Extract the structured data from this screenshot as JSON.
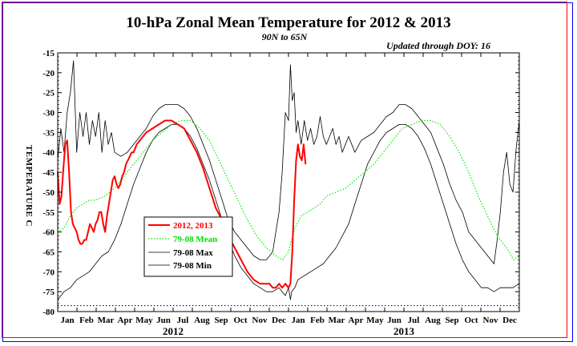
{
  "page": {
    "title": "10-hPa Zonal Mean Temperature for 2012 & 2013",
    "subtitle": "90N to 65N",
    "updated": "Updated through DOY:  16"
  },
  "colors": {
    "current": "#ff0000",
    "mean": "#00ee00",
    "max": "#000000",
    "min": "#000000",
    "reference": "#0000ff",
    "frame_outer": "#0000ff",
    "frame_inner": "#ff0000"
  },
  "chart_data": {
    "type": "line",
    "title": "10-hPa Zonal Mean Temperature for 2012 & 2013",
    "subtitle": "90N to 65N",
    "ylabel": "TEMPERATURE C",
    "xlabel": "",
    "ylim": [
      -80,
      -15
    ],
    "yticks": [
      -80,
      -75,
      -70,
      -65,
      -60,
      -55,
      -50,
      -45,
      -40,
      -35,
      -30,
      -25,
      -20,
      -15
    ],
    "xlim": [
      0,
      730
    ],
    "x_unit": "day of period starting 1 Jan 2012",
    "xtick_labels": [
      "Jan",
      "Feb",
      "Mar",
      "Apr",
      "May",
      "Jun",
      "Jul",
      "Aug",
      "Sep",
      "Oct",
      "Nov",
      "Dec",
      "Jan",
      "Feb",
      "Mar",
      "Apr",
      "May",
      "Jun",
      "Jul",
      "Aug",
      "Sep",
      "Oct",
      "Nov",
      "Dec"
    ],
    "year_labels": [
      "2012",
      "2013"
    ],
    "grid": false,
    "legend_position": "lower-left",
    "reference_line": {
      "y": -78.5,
      "style": "dotted"
    },
    "series": [
      {
        "name": "2012, 2013",
        "style": "solid-thick",
        "color": "#ff0000",
        "x": [
          0,
          3,
          6,
          9,
          12,
          15,
          18,
          21,
          24,
          27,
          30,
          33,
          36,
          39,
          42,
          45,
          48,
          51,
          54,
          57,
          60,
          63,
          66,
          69,
          72,
          75,
          78,
          81,
          84,
          87,
          90,
          93,
          96,
          99,
          102,
          105,
          108,
          111,
          114,
          117,
          120,
          125,
          130,
          140,
          150,
          160,
          170,
          180,
          190,
          200,
          210,
          220,
          230,
          240,
          250,
          260,
          270,
          280,
          290,
          300,
          310,
          320,
          330,
          335,
          340,
          345,
          350,
          355,
          360,
          365,
          368,
          371,
          374,
          377,
          380,
          383,
          386,
          389,
          392
        ],
        "y": [
          -45,
          -53,
          -51,
          -44,
          -38,
          -37,
          -45,
          -55,
          -58,
          -59,
          -60,
          -62,
          -63,
          -63,
          -62,
          -62,
          -60,
          -58,
          -59,
          -60,
          -58,
          -57,
          -55,
          -55,
          -58,
          -60,
          -56,
          -53,
          -50,
          -47,
          -46,
          -48,
          -49,
          -48,
          -46,
          -45,
          -43,
          -42,
          -41,
          -40,
          -40,
          -38,
          -37,
          -35,
          -34,
          -33,
          -32,
          -32,
          -33,
          -34,
          -37,
          -40,
          -44,
          -49,
          -54,
          -57,
          -61,
          -64,
          -67,
          -70,
          -72,
          -73,
          -73,
          -73,
          -74,
          -74,
          -73,
          -74,
          -73,
          -74,
          -73,
          -65,
          -52,
          -42,
          -38,
          -41,
          -42,
          -38,
          -43
        ]
      },
      {
        "name": "79-08 Mean",
        "style": "dotted",
        "color": "#00ee00",
        "x": [
          0,
          10,
          20,
          30,
          40,
          50,
          60,
          75,
          90,
          105,
          120,
          135,
          150,
          165,
          180,
          195,
          210,
          225,
          240,
          255,
          270,
          285,
          300,
          315,
          330,
          345,
          356,
          365,
          375,
          385,
          395,
          405,
          415,
          425,
          440,
          455,
          470,
          485,
          500,
          515,
          530,
          545,
          560,
          575,
          590,
          605,
          620,
          635,
          650,
          665,
          680,
          695,
          710,
          721,
          730
        ],
        "y": [
          -60,
          -59,
          -56,
          -54,
          -53,
          -52,
          -52,
          -51,
          -49,
          -46,
          -43,
          -40,
          -37,
          -35,
          -33,
          -32,
          -32,
          -34,
          -37,
          -42,
          -47,
          -52,
          -57,
          -61,
          -64,
          -66,
          -67,
          -65,
          -59,
          -56,
          -55,
          -54,
          -53,
          -51,
          -50,
          -49,
          -47,
          -45,
          -43,
          -40,
          -37,
          -34,
          -33,
          -32,
          -32,
          -33,
          -36,
          -40,
          -45,
          -51,
          -56,
          -61,
          -64,
          -67,
          -66
        ]
      },
      {
        "name": "79-08 Max",
        "style": "thin",
        "color": "#000000",
        "x": [
          0,
          5,
          10,
          15,
          20,
          25,
          30,
          35,
          40,
          45,
          50,
          55,
          60,
          65,
          70,
          75,
          80,
          85,
          90,
          100,
          110,
          120,
          130,
          140,
          150,
          160,
          170,
          180,
          190,
          200,
          210,
          220,
          230,
          240,
          250,
          260,
          270,
          280,
          290,
          300,
          310,
          320,
          330,
          340,
          345,
          350,
          355,
          360,
          365,
          368,
          371,
          374,
          377,
          380,
          385,
          390,
          395,
          400,
          405,
          410,
          415,
          420,
          425,
          430,
          435,
          440,
          445,
          450,
          455,
          460,
          465,
          470,
          480,
          490,
          500,
          510,
          520,
          530,
          540,
          550,
          560,
          570,
          580,
          590,
          600,
          610,
          620,
          630,
          640,
          650,
          660,
          670,
          680,
          690,
          695,
          700,
          705,
          710,
          715,
          720,
          725,
          730
        ],
        "y": [
          -42,
          -34,
          -40,
          -30,
          -25,
          -17,
          -40,
          -30,
          -36,
          -30,
          -38,
          -32,
          -36,
          -30,
          -40,
          -32,
          -38,
          -35,
          -40,
          -41,
          -40,
          -38,
          -36,
          -34,
          -31,
          -29,
          -28,
          -28,
          -28,
          -29,
          -31,
          -34,
          -38,
          -42,
          -47,
          -52,
          -57,
          -60,
          -62,
          -64,
          -66,
          -67,
          -67,
          -65,
          -60,
          -55,
          -45,
          -30,
          -32,
          -18,
          -27,
          -25,
          -35,
          -32,
          -38,
          -32,
          -37,
          -34,
          -38,
          -36,
          -31,
          -36,
          -38,
          -36,
          -34,
          -38,
          -36,
          -40,
          -38,
          -36,
          -38,
          -40,
          -37,
          -36,
          -35,
          -33,
          -31,
          -30,
          -28,
          -28,
          -29,
          -31,
          -33,
          -35,
          -39,
          -43,
          -48,
          -52,
          -55,
          -60,
          -62,
          -64,
          -66,
          -68,
          -62,
          -55,
          -45,
          -40,
          -48,
          -50,
          -39,
          -32
        ]
      },
      {
        "name": "79-08 Min",
        "style": "thin",
        "color": "#000000",
        "x": [
          0,
          10,
          20,
          30,
          40,
          50,
          60,
          70,
          80,
          90,
          100,
          110,
          120,
          130,
          140,
          150,
          160,
          170,
          180,
          190,
          200,
          210,
          220,
          230,
          240,
          250,
          260,
          270,
          280,
          290,
          300,
          310,
          320,
          330,
          340,
          350,
          355,
          360,
          365,
          368,
          370,
          375,
          380,
          390,
          400,
          410,
          420,
          430,
          440,
          450,
          460,
          470,
          480,
          490,
          500,
          510,
          520,
          530,
          540,
          550,
          560,
          570,
          580,
          590,
          600,
          610,
          620,
          630,
          640,
          650,
          660,
          670,
          680,
          690,
          700,
          710,
          720,
          730
        ],
        "y": [
          -77,
          -75,
          -74,
          -72,
          -71,
          -70,
          -68,
          -66,
          -65,
          -62,
          -58,
          -53,
          -48,
          -44,
          -40,
          -37,
          -35,
          -34,
          -33,
          -33,
          -34,
          -36,
          -39,
          -43,
          -47,
          -52,
          -57,
          -62,
          -66,
          -69,
          -71,
          -73,
          -74,
          -75,
          -75,
          -74,
          -75,
          -76,
          -74,
          -77,
          -75,
          -74,
          -72,
          -71,
          -70,
          -69,
          -68,
          -66,
          -64,
          -61,
          -58,
          -53,
          -48,
          -43,
          -40,
          -37,
          -35,
          -34,
          -33,
          -33,
          -34,
          -36,
          -39,
          -43,
          -48,
          -53,
          -58,
          -63,
          -67,
          -70,
          -72,
          -74,
          -74,
          -75,
          -74,
          -74,
          -74,
          -73
        ]
      }
    ]
  }
}
